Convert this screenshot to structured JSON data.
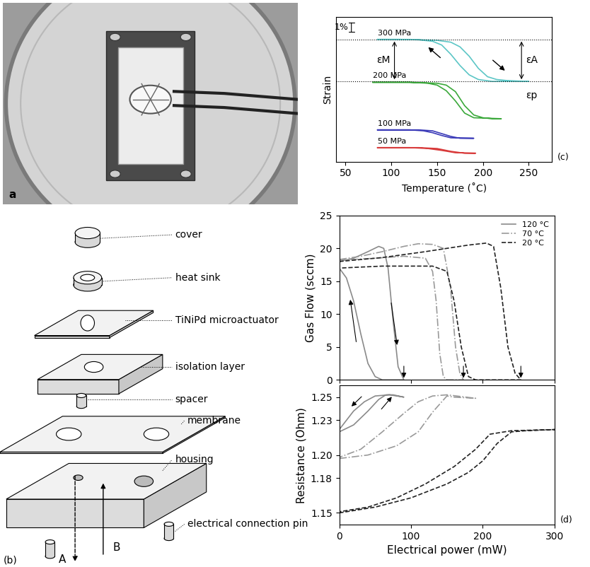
{
  "panels": {
    "a": {
      "label": "a"
    },
    "b": {
      "label": "(b)",
      "parts": [
        "cover",
        "heat sink",
        "TiNiPd microactuator",
        "isolation layer",
        "spacer",
        "membrane",
        "housing",
        "electrical connection pin"
      ],
      "flow_labels": [
        "A",
        "B"
      ]
    }
  },
  "chart_data": [
    {
      "type": "line",
      "panel_label": "(c)",
      "x_label": "Temperature (˚C)",
      "y_label": "Strain",
      "xlim": [
        40,
        275
      ],
      "xticks": [
        50,
        100,
        150,
        200,
        250
      ],
      "ylim": [
        0,
        15.5
      ],
      "tick_labels": "x",
      "scale_bar": {
        "label": "1%",
        "value": 1
      },
      "reference_lines": [
        13.1,
        8.6
      ],
      "annotations": [
        "εM",
        "εA",
        "εp"
      ],
      "series": [
        {
          "name": "300 MPa",
          "color": "#5cc6c6",
          "x": [
            85,
            120,
            150,
            165,
            175,
            185,
            195,
            205,
            215,
            225,
            235,
            250,
            210,
            195,
            185,
            175,
            165,
            155,
            145,
            130,
            110,
            85
          ],
          "values": [
            13.1,
            13.1,
            13.0,
            12.8,
            12.3,
            11.3,
            10.0,
            9.1,
            8.8,
            8.7,
            8.65,
            8.6,
            8.6,
            8.8,
            9.3,
            10.3,
            11.5,
            12.5,
            12.9,
            13.05,
            13.1,
            13.1
          ]
        },
        {
          "name": "200 MPa",
          "color": "#3aa83a",
          "x": [
            80,
            120,
            150,
            160,
            170,
            180,
            190,
            200,
            210,
            220,
            190,
            180,
            170,
            160,
            150,
            140,
            120,
            80
          ],
          "values": [
            8.5,
            8.5,
            8.4,
            8.2,
            7.5,
            6.0,
            5.0,
            4.7,
            4.6,
            4.6,
            4.7,
            5.2,
            6.5,
            7.6,
            8.2,
            8.4,
            8.5,
            8.5
          ]
        },
        {
          "name": "100 MPa",
          "color": "#3a3ab8",
          "x": [
            85,
            130,
            145,
            155,
            165,
            175,
            190,
            165,
            155,
            145,
            135,
            120,
            85
          ],
          "values": [
            3.4,
            3.4,
            3.3,
            3.0,
            2.7,
            2.5,
            2.5,
            2.55,
            2.8,
            3.1,
            3.3,
            3.4,
            3.4
          ]
        },
        {
          "name": "50 MPa",
          "color": "#d83a3a",
          "x": [
            85,
            130,
            150,
            165,
            180,
            192,
            170,
            155,
            140,
            120,
            85
          ],
          "values": [
            1.5,
            1.5,
            1.4,
            1.1,
            0.9,
            0.9,
            0.95,
            1.2,
            1.4,
            1.5,
            1.5
          ]
        }
      ]
    },
    {
      "type": "line",
      "y_label": "Gas Flow (sccm)",
      "xlim": [
        0,
        300
      ],
      "xticks": [
        0,
        100,
        200,
        300
      ],
      "ylim": [
        0,
        25
      ],
      "yticks": [
        0,
        5,
        10,
        15,
        20,
        25
      ],
      "tick_labels": "y",
      "legend": "upper right",
      "series": [
        {
          "name": "120 °C",
          "color": "#8a8a8a",
          "line_style": "solid",
          "x": [
            0,
            20,
            40,
            55,
            62,
            68,
            75,
            82,
            90,
            60,
            50,
            40,
            30,
            20,
            10,
            0
          ],
          "values": [
            18,
            18.5,
            19.5,
            20.3,
            20,
            17,
            9,
            2,
            0,
            0,
            0.5,
            2.5,
            7,
            12,
            15.5,
            17
          ]
        },
        {
          "name": "70 °C",
          "color": "#9a9a9a",
          "line_style": "dashdot",
          "x": [
            0,
            30,
            60,
            90,
            110,
            130,
            145,
            155,
            162,
            168,
            173,
            150,
            145,
            140,
            135,
            130,
            120,
            90,
            50,
            0
          ],
          "values": [
            18.3,
            18.8,
            19.5,
            20.3,
            20.7,
            20.6,
            20,
            14,
            5,
            1,
            0,
            0,
            0.5,
            4,
            12,
            16.5,
            18.5,
            18.8,
            18.5,
            18.2
          ]
        },
        {
          "name": "20 °C",
          "color": "#222222",
          "line_style": "dashed",
          "x": [
            0,
            60,
            120,
            180,
            205,
            215,
            225,
            235,
            245,
            253,
            190,
            180,
            170,
            160,
            150,
            130,
            60,
            0
          ],
          "values": [
            18,
            18.6,
            19.5,
            20.5,
            20.8,
            20.3,
            14,
            5,
            1,
            0,
            0,
            0.5,
            5,
            12,
            16.5,
            17.3,
            17.3,
            17
          ]
        }
      ]
    },
    {
      "type": "line",
      "panel_label": "(d)",
      "x_label": "Electrical power (mW)",
      "y_label": "Resistance (Ohm)",
      "xlim": [
        0,
        300
      ],
      "xticks": [
        0,
        100,
        200,
        300
      ],
      "ylim": [
        1.14,
        1.26
      ],
      "yticks": [
        1.15,
        1.18,
        {
          "value": 1.2,
          "label": "1.20"
        },
        1.23,
        1.25
      ],
      "series": [
        {
          "color": "#8a8a8a",
          "line_style": "solid",
          "x": [
            0,
            20,
            40,
            55,
            65,
            75,
            90,
            70,
            50,
            35,
            20,
            10,
            0
          ],
          "values": [
            1.22,
            1.226,
            1.238,
            1.248,
            1.252,
            1.252,
            1.25,
            1.252,
            1.251,
            1.246,
            1.238,
            1.23,
            1.222
          ]
        },
        {
          "color": "#9a9a9a",
          "line_style": "dashdot",
          "x": [
            0,
            40,
            80,
            110,
            130,
            150,
            160,
            190,
            150,
            130,
            110,
            90,
            60,
            30,
            0
          ],
          "values": [
            1.197,
            1.2,
            1.208,
            1.22,
            1.237,
            1.251,
            1.25,
            1.249,
            1.252,
            1.251,
            1.246,
            1.236,
            1.22,
            1.205,
            1.198
          ]
        },
        {
          "color": "#222222",
          "line_style": "dashed",
          "x": [
            0,
            50,
            100,
            150,
            180,
            200,
            220,
            240,
            260,
            300,
            240,
            210,
            190,
            160,
            120,
            80,
            40,
            0
          ],
          "values": [
            1.15,
            1.155,
            1.163,
            1.175,
            1.185,
            1.195,
            1.21,
            1.22,
            1.221,
            1.222,
            1.221,
            1.218,
            1.205,
            1.19,
            1.175,
            1.163,
            1.155,
            1.151
          ]
        }
      ]
    }
  ]
}
